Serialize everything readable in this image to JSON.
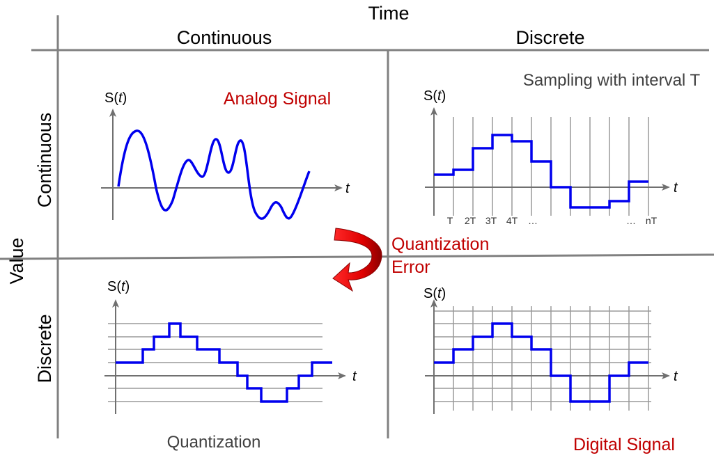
{
  "header": {
    "time": "Time",
    "continuous": "Continuous",
    "discrete": "Discrete"
  },
  "side": {
    "value": "Value",
    "continuous": "Continuous",
    "discrete": "Discrete"
  },
  "captions": {
    "analog": "Analog Signal",
    "sampling": "Sampling with interval T",
    "quantization_error_line1": "Quantization",
    "quantization_error_line2": "Error",
    "quantization": "Quantization",
    "digital": "Digital Signal"
  },
  "axis": {
    "y_symbol_s": "S(",
    "y_symbol_t": "t",
    "y_symbol_close": ")",
    "x_symbol": "t"
  },
  "sample_ticks": [
    "T",
    "2T",
    "3T",
    "4T",
    "…",
    "…",
    "nT"
  ],
  "colors": {
    "signal": "#0000ee",
    "caption_red": "#c00000",
    "grid": "#808080",
    "arrow": "#e00000"
  }
}
